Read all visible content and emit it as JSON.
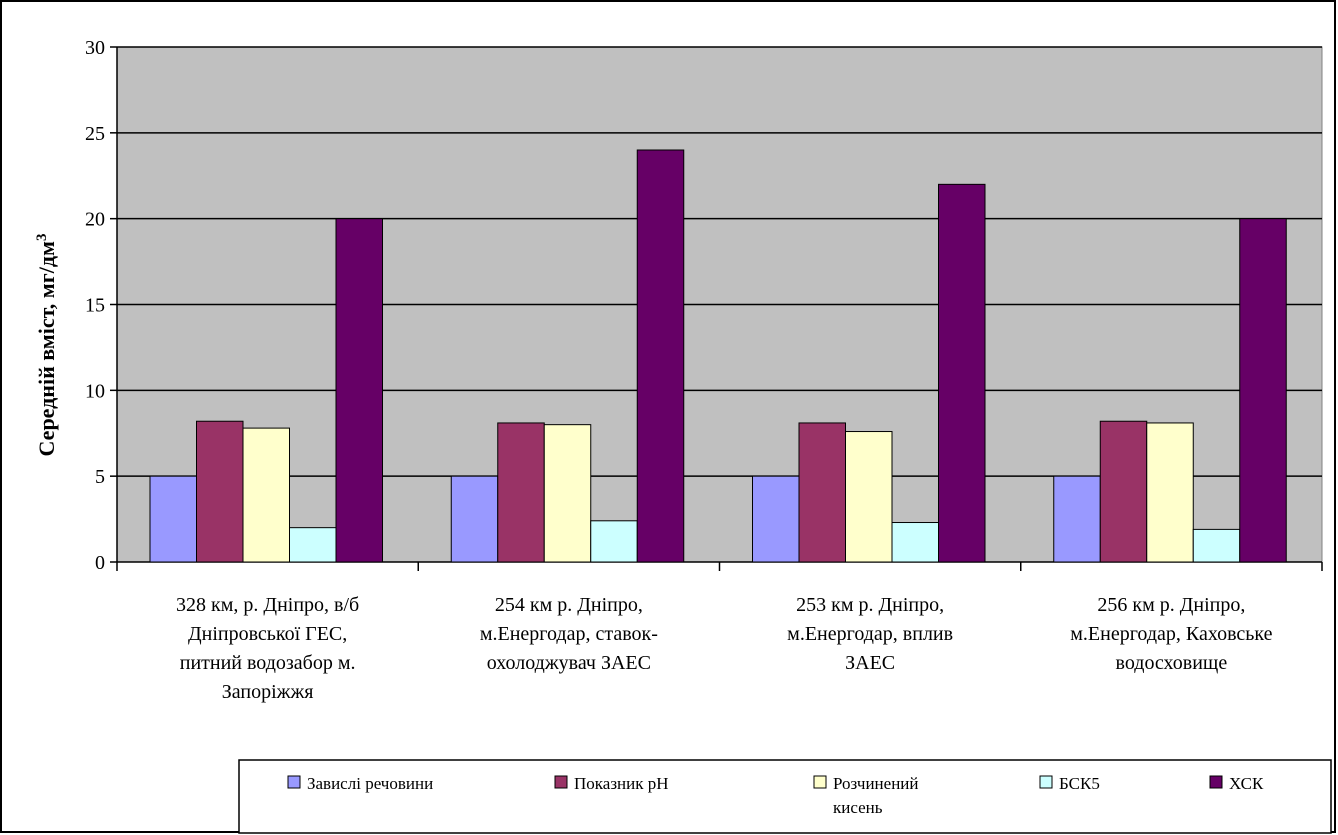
{
  "chart_data": {
    "type": "bar",
    "ylabel": "Середній вміст, мг/дм",
    "ylabel_sup": "3",
    "ylim": [
      0,
      30
    ],
    "yticks": [
      0,
      5,
      10,
      15,
      20,
      25,
      30
    ],
    "grid": true,
    "legend_position": "bottom",
    "categories": [
      [
        "328 км, р. Дніпро, в/б",
        "Дніпровської ГЕС,",
        "питний водозабор м.",
        "Запоріжжя"
      ],
      [
        "254 км р. Дніпро,",
        "м.Енергодар, ставок-",
        "охолоджувач ЗАЕС"
      ],
      [
        "253 км р. Дніпро,",
        "м.Енергодар, вплив",
        "ЗАЕС"
      ],
      [
        "256 км р. Дніпро,",
        "м.Енергодар, Каховське",
        "водосховище"
      ]
    ],
    "series": [
      {
        "name": [
          "Завислі речовини"
        ],
        "color": "#9999ff",
        "values": [
          5,
          5,
          5,
          5
        ]
      },
      {
        "name": [
          "Показник рН"
        ],
        "color": "#993366",
        "values": [
          8.2,
          8.1,
          8.1,
          8.2
        ]
      },
      {
        "name": [
          "Розчинений",
          "кисень"
        ],
        "color": "#ffffcc",
        "values": [
          7.8,
          8.0,
          7.6,
          8.1
        ]
      },
      {
        "name": [
          "БСК5"
        ],
        "color": "#ccffff",
        "values": [
          2.0,
          2.4,
          2.3,
          1.9
        ]
      },
      {
        "name": [
          "ХСК"
        ],
        "color": "#660066",
        "values": [
          20,
          24,
          22,
          20
        ]
      }
    ]
  }
}
